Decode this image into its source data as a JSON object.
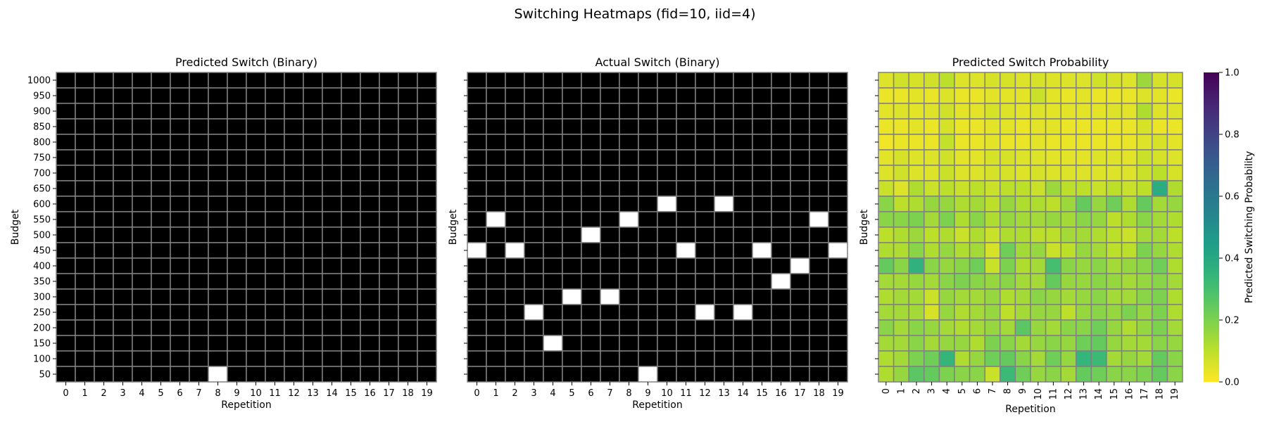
{
  "chart_data": {
    "suptitle": "Switching Heatmaps (fid=10, iid=4)",
    "panels": [
      {
        "id": "predicted-binary",
        "type": "heatmap",
        "title": "Predicted Switch (Binary)",
        "xlabel": "Repetition",
        "ylabel": "Budget",
        "x": [
          0,
          1,
          2,
          3,
          4,
          5,
          6,
          7,
          8,
          9,
          10,
          11,
          12,
          13,
          14,
          15,
          16,
          17,
          18,
          19
        ],
        "y": [
          1000,
          950,
          900,
          850,
          800,
          750,
          700,
          650,
          600,
          550,
          500,
          450,
          400,
          350,
          300,
          250,
          200,
          150,
          100,
          50
        ],
        "colormap": "binary: 0 = #000000, 1 = #ffffff",
        "ones": [
          [
            50,
            8
          ]
        ]
      },
      {
        "id": "actual-binary",
        "type": "heatmap",
        "title": "Actual Switch (Binary)",
        "xlabel": "Repetition",
        "ylabel": "Budget",
        "x": [
          0,
          1,
          2,
          3,
          4,
          5,
          6,
          7,
          8,
          9,
          10,
          11,
          12,
          13,
          14,
          15,
          16,
          17,
          18,
          19
        ],
        "y": [
          1000,
          950,
          900,
          850,
          800,
          750,
          700,
          650,
          600,
          550,
          500,
          450,
          400,
          350,
          300,
          250,
          200,
          150,
          100,
          50
        ],
        "colormap": "binary: 0 = #000000, 1 = #ffffff",
        "ones": [
          [
            600,
            10
          ],
          [
            600,
            13
          ],
          [
            550,
            1
          ],
          [
            550,
            8
          ],
          [
            550,
            18
          ],
          [
            500,
            6
          ],
          [
            450,
            0
          ],
          [
            450,
            2
          ],
          [
            450,
            11
          ],
          [
            450,
            15
          ],
          [
            450,
            19
          ],
          [
            400,
            17
          ],
          [
            350,
            16
          ],
          [
            300,
            5
          ],
          [
            300,
            7
          ],
          [
            250,
            3
          ],
          [
            250,
            12
          ],
          [
            250,
            14
          ],
          [
            150,
            4
          ],
          [
            50,
            9
          ]
        ]
      },
      {
        "id": "probability",
        "type": "heatmap",
        "title": "Predicted Switch Probability",
        "xlabel": "Repetition",
        "ylabel": "Budget",
        "x": [
          0,
          1,
          2,
          3,
          4,
          5,
          6,
          7,
          8,
          9,
          10,
          11,
          12,
          13,
          14,
          15,
          16,
          17,
          18,
          19
        ],
        "y": [
          1000,
          950,
          900,
          850,
          800,
          750,
          700,
          650,
          600,
          550,
          500,
          450,
          400,
          350,
          300,
          250,
          200,
          150,
          100,
          50
        ],
        "colormap": "viridis_r",
        "vmin": 0.0,
        "vmax": 1.0,
        "colorbar": {
          "label": "Predicted Switching Probability",
          "ticks": [
            0.0,
            0.2,
            0.4,
            0.6,
            0.8,
            1.0
          ],
          "tick_labels": [
            "0.0",
            "0.2",
            "0.4",
            "0.6",
            "0.8",
            "1.0"
          ]
        },
        "values": [
          [
            0.05,
            0.07,
            0.06,
            0.07,
            0.1,
            0.05,
            0.05,
            0.06,
            0.06,
            0.05,
            0.06,
            0.05,
            0.05,
            0.05,
            0.07,
            0.06,
            0.05,
            0.15,
            0.06,
            0.06
          ],
          [
            0.03,
            0.03,
            0.04,
            0.03,
            0.05,
            0.03,
            0.03,
            0.04,
            0.04,
            0.04,
            0.08,
            0.04,
            0.03,
            0.04,
            0.03,
            0.03,
            0.03,
            0.05,
            0.04,
            0.03
          ],
          [
            0.04,
            0.05,
            0.04,
            0.05,
            0.07,
            0.04,
            0.04,
            0.06,
            0.05,
            0.04,
            0.05,
            0.04,
            0.04,
            0.04,
            0.04,
            0.05,
            0.04,
            0.12,
            0.05,
            0.05
          ],
          [
            0.03,
            0.03,
            0.04,
            0.03,
            0.06,
            0.03,
            0.03,
            0.04,
            0.04,
            0.03,
            0.04,
            0.04,
            0.03,
            0.03,
            0.03,
            0.03,
            0.03,
            0.06,
            0.03,
            0.03
          ],
          [
            0.02,
            0.03,
            0.03,
            0.03,
            0.09,
            0.03,
            0.03,
            0.04,
            0.03,
            0.03,
            0.04,
            0.03,
            0.03,
            0.03,
            0.03,
            0.03,
            0.03,
            0.05,
            0.06,
            0.04
          ],
          [
            0.04,
            0.06,
            0.05,
            0.05,
            0.07,
            0.04,
            0.04,
            0.06,
            0.06,
            0.05,
            0.05,
            0.04,
            0.04,
            0.04,
            0.05,
            0.05,
            0.04,
            0.08,
            0.06,
            0.05
          ],
          [
            0.05,
            0.07,
            0.05,
            0.05,
            0.08,
            0.05,
            0.05,
            0.06,
            0.06,
            0.05,
            0.06,
            0.05,
            0.05,
            0.05,
            0.05,
            0.05,
            0.05,
            0.08,
            0.1,
            0.06
          ],
          [
            0.08,
            0.05,
            0.12,
            0.08,
            0.1,
            0.08,
            0.1,
            0.08,
            0.1,
            0.1,
            0.08,
            0.15,
            0.1,
            0.1,
            0.08,
            0.1,
            0.08,
            0.1,
            0.38,
            0.12
          ],
          [
            0.18,
            0.1,
            0.12,
            0.16,
            0.16,
            0.12,
            0.14,
            0.1,
            0.16,
            0.12,
            0.12,
            0.1,
            0.15,
            0.24,
            0.16,
            0.22,
            0.12,
            0.24,
            0.14,
            0.16
          ],
          [
            0.18,
            0.18,
            0.2,
            0.14,
            0.2,
            0.12,
            0.18,
            0.12,
            0.16,
            0.14,
            0.14,
            0.16,
            0.14,
            0.18,
            0.16,
            0.1,
            0.12,
            0.18,
            0.14,
            0.12
          ],
          [
            0.1,
            0.12,
            0.15,
            0.1,
            0.12,
            0.08,
            0.12,
            0.08,
            0.12,
            0.12,
            0.1,
            0.1,
            0.14,
            0.14,
            0.12,
            0.1,
            0.08,
            0.14,
            0.14,
            0.1
          ],
          [
            0.12,
            0.12,
            0.18,
            0.12,
            0.16,
            0.12,
            0.14,
            0.06,
            0.22,
            0.14,
            0.16,
            0.08,
            0.1,
            0.16,
            0.14,
            0.1,
            0.1,
            0.2,
            0.16,
            0.12
          ],
          [
            0.24,
            0.18,
            0.36,
            0.18,
            0.16,
            0.18,
            0.22,
            0.08,
            0.2,
            0.12,
            0.14,
            0.3,
            0.18,
            0.16,
            0.18,
            0.14,
            0.16,
            0.18,
            0.22,
            0.12
          ],
          [
            0.14,
            0.14,
            0.16,
            0.14,
            0.18,
            0.2,
            0.18,
            0.16,
            0.18,
            0.14,
            0.14,
            0.24,
            0.16,
            0.16,
            0.18,
            0.16,
            0.14,
            0.16,
            0.18,
            0.14
          ],
          [
            0.12,
            0.14,
            0.14,
            0.08,
            0.16,
            0.14,
            0.14,
            0.16,
            0.12,
            0.14,
            0.18,
            0.16,
            0.14,
            0.16,
            0.18,
            0.14,
            0.14,
            0.18,
            0.2,
            0.12
          ],
          [
            0.14,
            0.14,
            0.14,
            0.06,
            0.16,
            0.12,
            0.14,
            0.16,
            0.1,
            0.14,
            0.16,
            0.16,
            0.1,
            0.16,
            0.18,
            0.16,
            0.2,
            0.16,
            0.2,
            0.12
          ],
          [
            0.18,
            0.14,
            0.18,
            0.16,
            0.14,
            0.12,
            0.14,
            0.16,
            0.14,
            0.26,
            0.16,
            0.14,
            0.18,
            0.18,
            0.22,
            0.16,
            0.12,
            0.16,
            0.2,
            0.14
          ],
          [
            0.14,
            0.14,
            0.18,
            0.14,
            0.16,
            0.16,
            0.12,
            0.2,
            0.18,
            0.14,
            0.16,
            0.18,
            0.16,
            0.22,
            0.24,
            0.16,
            0.14,
            0.14,
            0.18,
            0.16
          ],
          [
            0.12,
            0.14,
            0.2,
            0.22,
            0.34,
            0.12,
            0.16,
            0.22,
            0.24,
            0.18,
            0.14,
            0.22,
            0.16,
            0.34,
            0.32,
            0.14,
            0.16,
            0.14,
            0.24,
            0.18
          ],
          [
            0.12,
            0.16,
            0.26,
            0.24,
            0.2,
            0.18,
            0.18,
            0.08,
            0.32,
            0.22,
            0.16,
            0.18,
            0.14,
            0.24,
            0.22,
            0.18,
            0.18,
            0.2,
            0.24,
            0.18
          ]
        ]
      }
    ]
  }
}
